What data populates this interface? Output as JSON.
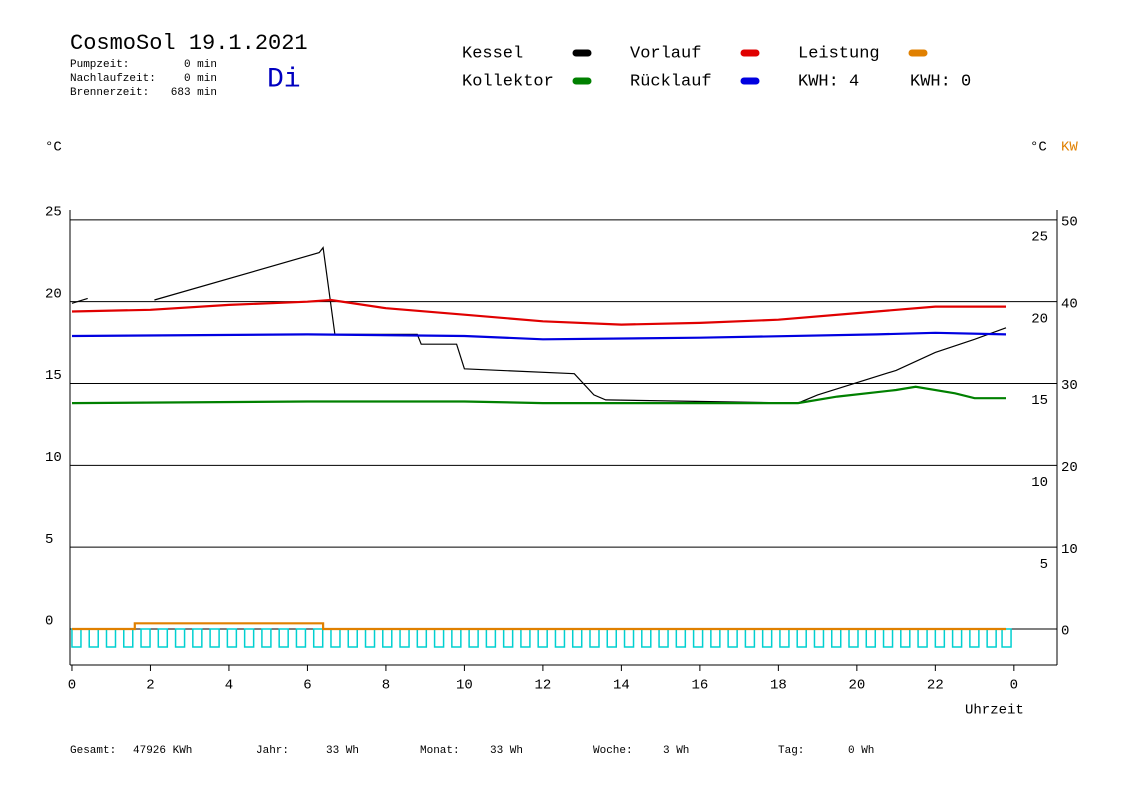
{
  "header": {
    "title": "CosmoSol 19.1.2021",
    "day": "Di",
    "info": [
      {
        "label": "Pumpzeit:",
        "value": "0 min"
      },
      {
        "label": "Nachlaufzeit:",
        "value": "0 min"
      },
      {
        "label": "Brennerzeit:",
        "value": "683 min"
      }
    ],
    "kwh": [
      {
        "text": "KWH: 4",
        "color": "#e08000"
      },
      {
        "text": "KWH: 0",
        "color": "#8000a0"
      }
    ]
  },
  "chart_data": {
    "type": "line",
    "y_unit": "°C",
    "y2_unit": "°C",
    "y2_unit2": "KW",
    "x_label": "Uhrzeit",
    "xlim": [
      -0.05,
      25.1
    ],
    "xticks": [
      0,
      2,
      4,
      6,
      8,
      10,
      12,
      14,
      16,
      18,
      20,
      22,
      {
        "value": 24,
        "label": "0"
      }
    ],
    "ylim": [
      -2.2,
      25.6
    ],
    "yticks": [
      0,
      5,
      10,
      15,
      20,
      25
    ],
    "right_ticks": [
      5,
      10,
      15,
      20,
      25
    ],
    "y2lim": [
      -4.4,
      51.2
    ],
    "y2ticks": [
      0,
      10,
      20,
      30,
      40,
      50
    ],
    "y2color": "#e08000",
    "grid": true,
    "series": [
      {
        "name": "Kessel",
        "color": "#000000",
        "x": [
          0,
          0.4,
          1.2,
          2.1,
          6.3,
          6.4,
          6.7,
          8.8,
          8.9,
          9.8,
          10.0,
          12.8,
          13.3,
          13.6,
          18.5,
          19.0,
          21.0,
          22.0,
          23.0,
          23.8
        ],
        "values": [
          19.9,
          20.2,
          null,
          20.1,
          23.0,
          23.3,
          18.0,
          18.0,
          17.4,
          17.4,
          15.9,
          15.6,
          14.3,
          14.0,
          13.8,
          14.3,
          15.8,
          16.9,
          17.7,
          18.4
        ]
      },
      {
        "name": "Kollektor",
        "color": "#008000",
        "x": [
          0,
          6,
          10,
          12,
          17,
          18.5,
          19.5,
          21,
          21.5,
          22.5,
          23,
          23.8
        ],
        "values": [
          13.8,
          13.9,
          13.9,
          13.8,
          13.8,
          13.8,
          14.2,
          14.6,
          14.8,
          14.4,
          14.1,
          14.1
        ]
      },
      {
        "name": "Vorlauf",
        "color": "#e00000",
        "x": [
          0,
          2,
          4,
          6,
          6.6,
          8,
          10,
          12,
          14,
          16,
          18,
          20,
          22,
          23.8
        ],
        "values": [
          19.4,
          19.5,
          19.8,
          20.0,
          20.1,
          19.6,
          19.2,
          18.8,
          18.6,
          18.7,
          18.9,
          19.3,
          19.7,
          19.7
        ]
      },
      {
        "name": "Rücklauf",
        "color": "#0000e0",
        "x": [
          0,
          6,
          10,
          12,
          16,
          20.5,
          22,
          23.8
        ],
        "values": [
          17.9,
          18.0,
          17.9,
          17.7,
          17.8,
          18.0,
          18.1,
          18.0
        ]
      },
      {
        "name": "Leistung",
        "color": "#e08000",
        "axis": "y2",
        "x": [
          0,
          1.6,
          1.6,
          6.4,
          6.4,
          23.8
        ],
        "values": [
          0,
          0,
          0.7,
          0.7,
          0,
          0
        ]
      }
    ],
    "pulses": {
      "color": "#00d0d0",
      "x": [
        0,
        0.44,
        0.88,
        1.32,
        1.76,
        2.2,
        2.64,
        3.08,
        3.52,
        3.96,
        4.4,
        4.84,
        5.28,
        5.72,
        6.16,
        6.6,
        7.04,
        7.48,
        7.92,
        8.36,
        8.8,
        9.24,
        9.68,
        10.12,
        10.56,
        11.0,
        11.44,
        11.88,
        12.32,
        12.76,
        13.2,
        13.64,
        14.08,
        14.52,
        14.96,
        15.4,
        15.84,
        16.28,
        16.72,
        17.16,
        17.6,
        18.04,
        18.48,
        18.92,
        19.36,
        19.8,
        20.24,
        20.68,
        21.12,
        21.56,
        22.0,
        22.44,
        22.88,
        23.32,
        23.7
      ],
      "values": [
        -1.1,
        -1.1,
        -1.1,
        -1.1,
        -1.1,
        -1.1,
        -1.1,
        -1.1,
        -1.1,
        -1.1,
        -1.1,
        -1.1,
        -1.1,
        -1.1,
        -1.1,
        -1.1,
        -1.1,
        -1.1,
        -1.1,
        -1.1,
        -1.1,
        -1.1,
        -1.1,
        -1.1,
        -1.1,
        -1.1,
        -1.1,
        -1.1,
        -1.1,
        -1.1,
        -1.1,
        -1.1,
        -1.1,
        -1.1,
        -1.1,
        -1.1,
        -1.1,
        -1.1,
        -1.1,
        -1.1,
        -1.1,
        -1.1,
        -1.1,
        -1.1,
        -1.1,
        -1.1,
        -1.1,
        -1.1,
        -1.1,
        -1.1,
        -1.1,
        -1.1,
        -1.1,
        -1.1,
        -1.1
      ]
    }
  },
  "footer": [
    {
      "label": "Gesamt:",
      "value": "47926 KWh"
    },
    {
      "label": "Jahr:",
      "value": "33 Wh"
    },
    {
      "label": "Monat:",
      "value": "33 Wh"
    },
    {
      "label": "Woche:",
      "value": "3 Wh"
    },
    {
      "label": "Tag:",
      "value": "0 Wh"
    }
  ]
}
